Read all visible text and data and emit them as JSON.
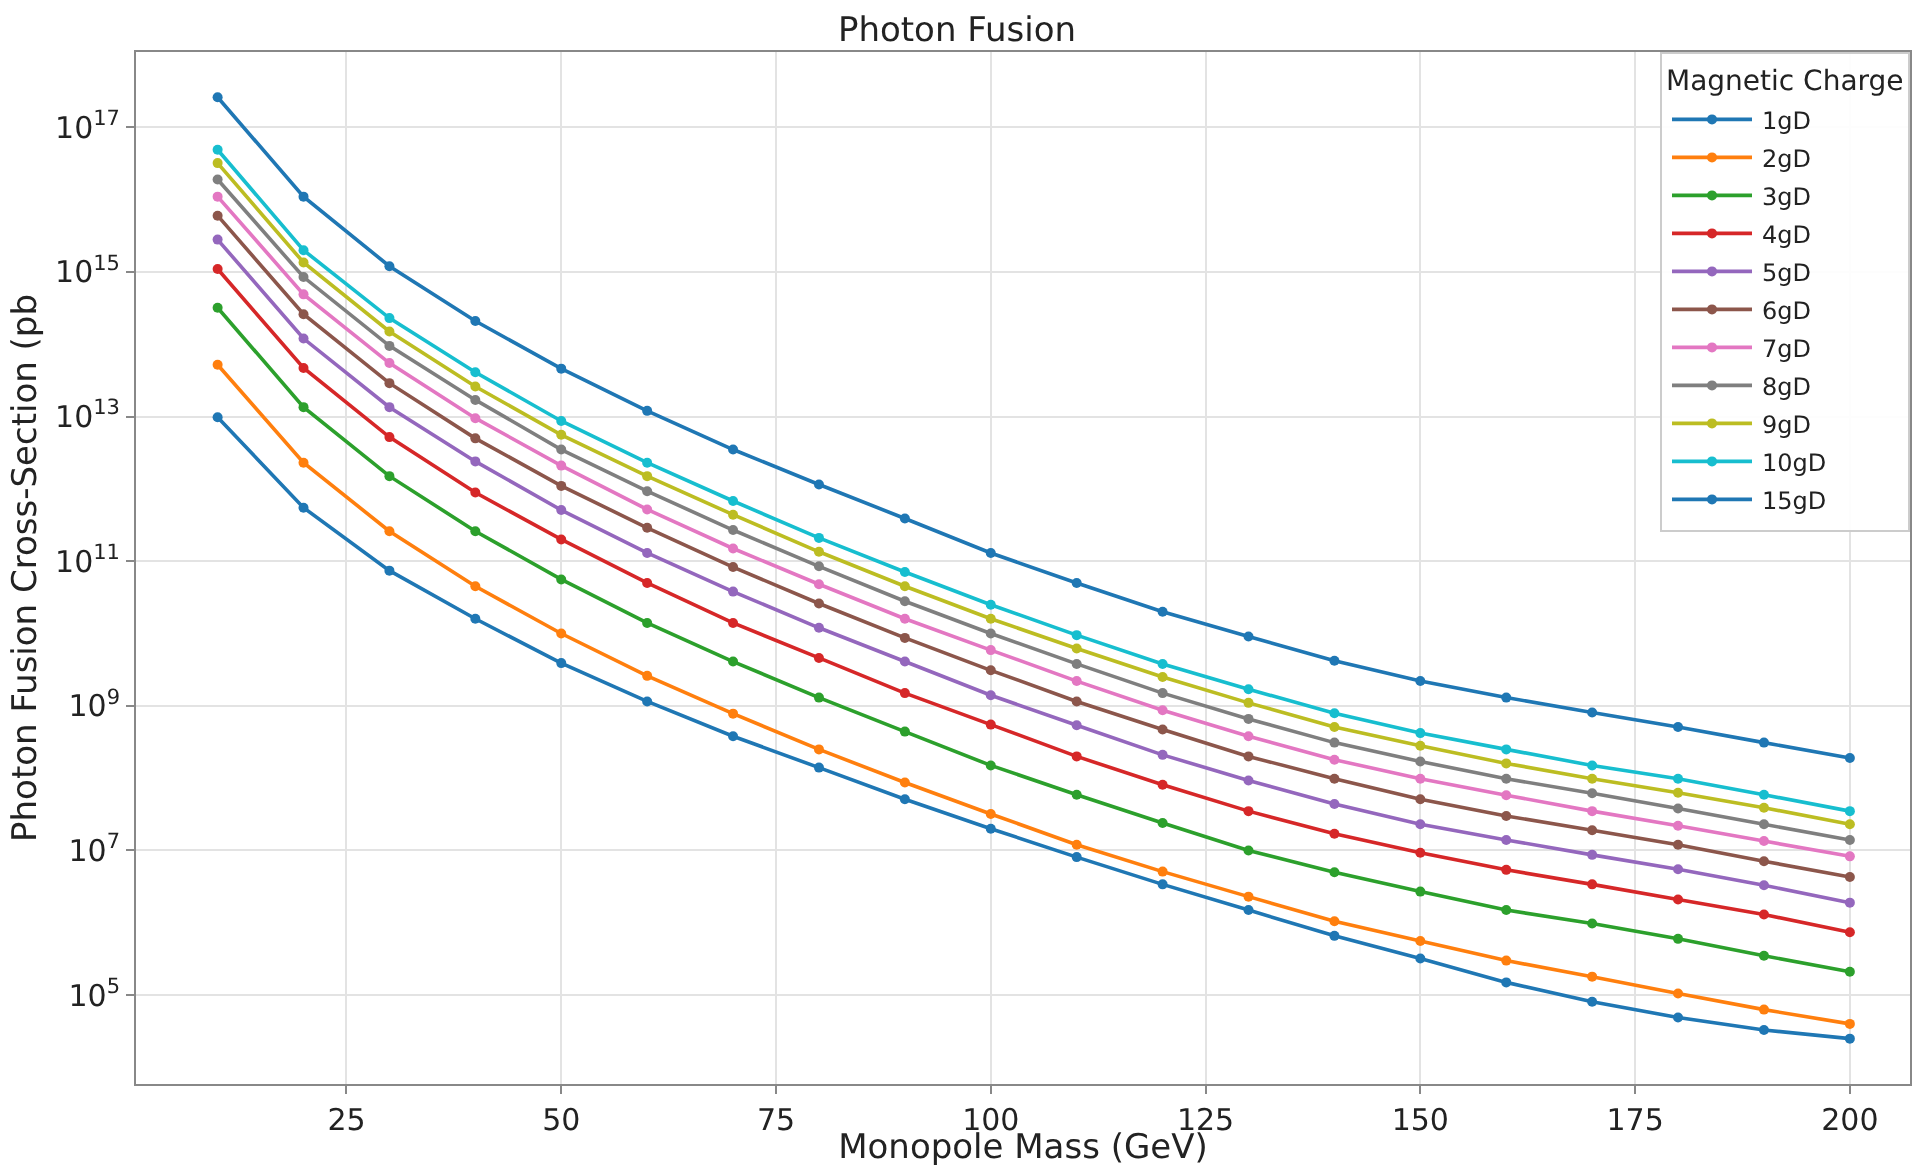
{
  "chart_data": {
    "type": "line",
    "title": "Photon Fusion",
    "xlabel": "Monopole Mass (GeV)",
    "ylabel": "Photon Fusion Cross-Section (pb",
    "legend_title": "Magnetic Charge",
    "log": "y",
    "grid": true,
    "legend": "top right",
    "marker": "circle",
    "line_style": "solid",
    "x": [
      10,
      20,
      30,
      40,
      50,
      60,
      70,
      80,
      90,
      100,
      110,
      120,
      130,
      140,
      150,
      160,
      170,
      180,
      190,
      200
    ],
    "xlim": [
      0.5,
      207
    ],
    "xticks": [
      25,
      50,
      75,
      100,
      125,
      150,
      175,
      200
    ],
    "ylim": [
      5900.0,
      1.1e+18
    ],
    "yticks": [
      {
        "value": 100000.0,
        "label": "10$^{5}$"
      },
      {
        "value": 10000000.0,
        "label": "10$^{7}$"
      },
      {
        "value": 1000000000.0,
        "label": "10$^{9}$"
      },
      {
        "value": 100000000000.0,
        "label": "10$^{11}$"
      },
      {
        "value": 10000000000000.0,
        "label": "10$^{13}$"
      },
      {
        "value": 1000000000000000.0,
        "label": "10$^{15}$"
      },
      {
        "value": 1e+17,
        "label": "10$^{17}$"
      }
    ],
    "series": [
      {
        "name": "1gD",
        "color": "#1f77b4",
        "values": [
          9800000000000.0,
          550000000000.0,
          74000000000.0,
          16000000000.0,
          3900000000.0,
          1150000000.0,
          380000000.0,
          140000000.0,
          51000000.0,
          20000000.0,
          8100000.0,
          3400000.0,
          1500000.0,
          660000.0,
          320000.0,
          150000.0,
          81000.0,
          49000.0,
          33000.0,
          25000.0
        ]
      },
      {
        "name": "2gD",
        "color": "#ff7f0e",
        "values": [
          52000000000000.0,
          2300000000000.0,
          260000000000.0,
          45000000000.0,
          10000000000.0,
          2600000000.0,
          780000000.0,
          250000000.0,
          87000000.0,
          32000000.0,
          12000000.0,
          5100000.0,
          2300000.0,
          1050000.0,
          560000.0,
          300000.0,
          180000.0,
          105000.0,
          63000.0,
          40000.0
        ]
      },
      {
        "name": "3gD",
        "color": "#2ca02c",
        "values": [
          320000000000000.0,
          13500000000000.0,
          1500000000000.0,
          260000000000.0,
          56000000000.0,
          14000000000.0,
          4100000000.0,
          1300000000.0,
          440000000.0,
          150000000.0,
          59000000.0,
          24000000.0,
          10000000.0,
          5000000.0,
          2700000.0,
          1500000.0,
          980000.0,
          600000.0,
          350000.0,
          210000.0
        ]
      },
      {
        "name": "4gD",
        "color": "#d62728",
        "values": [
          1100000000000000.0,
          47000000000000.0,
          5200000000000.0,
          890000000000.0,
          200000000000.0,
          50000000000.0,
          14000000000.0,
          4600000000.0,
          1500000000.0,
          550000000.0,
          200000000.0,
          81000000.0,
          35000000.0,
          17000000.0,
          9300000.0,
          5400000.0,
          3400000.0,
          2100000.0,
          1300000.0,
          740000.0
        ]
      },
      {
        "name": "5gD",
        "color": "#9467bd",
        "values": [
          2800000000000000.0,
          120000000000000.0,
          13500000000000.0,
          2400000000000.0,
          510000000000.0,
          130000000000.0,
          38000000000.0,
          12000000000.0,
          4100000000.0,
          1400000000.0,
          540000000.0,
          210000000.0,
          93000000.0,
          44000000.0,
          23000000.0,
          14000000.0,
          8700000.0,
          5500000.0,
          3300000.0,
          1900000.0
        ]
      },
      {
        "name": "6gD",
        "color": "#8c564b",
        "values": [
          6000000000000000.0,
          260000000000000.0,
          29000000000000.0,
          5000000000000.0,
          1100000000000.0,
          290000000000.0,
          83000000000.0,
          26000000000.0,
          8700000000.0,
          3100000000.0,
          1150000000.0,
          470000000.0,
          200000000.0,
          98000000.0,
          51000000.0,
          30000000.0,
          19000000.0,
          12000000.0,
          7100000.0,
          4300000.0
        ]
      },
      {
        "name": "7gD",
        "color": "#e377c2",
        "values": [
          1.1e+16,
          490000000000000.0,
          55000000000000.0,
          9500000000000.0,
          2100000000000.0,
          520000000000.0,
          150000000000.0,
          48000000000.0,
          16000000000.0,
          5900000000.0,
          2200000000.0,
          870000000.0,
          380000000.0,
          180000000.0,
          98000000.0,
          58000000.0,
          35000000.0,
          22000000.0,
          13500000.0,
          8300000.0
        ]
      },
      {
        "name": "8gD",
        "color": "#7f7f7f",
        "values": [
          1.9e+16,
          850000000000000.0,
          95000000000000.0,
          17000000000000.0,
          3500000000000.0,
          930000000000.0,
          270000000000.0,
          85000000000.0,
          28000000000.0,
          10000000000.0,
          3800000000.0,
          1500000000.0,
          660000000.0,
          310000000.0,
          170000000.0,
          98000000.0,
          62000000.0,
          38000000.0,
          23000000.0,
          14000000.0
        ]
      },
      {
        "name": "9gD",
        "color": "#bcbd22",
        "values": [
          3.2e+16,
          1350000000000000.0,
          150000000000000.0,
          26000000000000.0,
          5600000000000.0,
          1500000000000.0,
          440000000000.0,
          135000000000.0,
          45000000000.0,
          16000000000.0,
          6200000000.0,
          2500000000.0,
          1100000000.0,
          510000000.0,
          280000000.0,
          160000000.0,
          98000000.0,
          63000000.0,
          39000000.0,
          23000000.0
        ]
      },
      {
        "name": "10gD",
        "color": "#17becf",
        "values": [
          4.9e+16,
          2000000000000000.0,
          230000000000000.0,
          41000000000000.0,
          8700000000000.0,
          2300000000000.0,
          680000000000.0,
          210000000000.0,
          71000000000.0,
          25000000000.0,
          9500000000.0,
          3800000000.0,
          1700000000.0,
          790000000.0,
          420000000.0,
          250000000.0,
          150000000.0,
          98000000.0,
          59000000.0,
          35000000.0
        ]
      },
      {
        "name": "15gD",
        "color": "#1f77b4",
        "values": [
          2.6e+17,
          1.1e+16,
          1200000000000000.0,
          210000000000000.0,
          46000000000000.0,
          12000000000000.0,
          3500000000000.0,
          1150000000000.0,
          390000000000.0,
          130000000000.0,
          50000000000.0,
          20000000000.0,
          9100000000.0,
          4200000000.0,
          2200000000.0,
          1300000000.0,
          810000000.0,
          510000000.0,
          310000000.0,
          190000000.0
        ]
      }
    ]
  }
}
